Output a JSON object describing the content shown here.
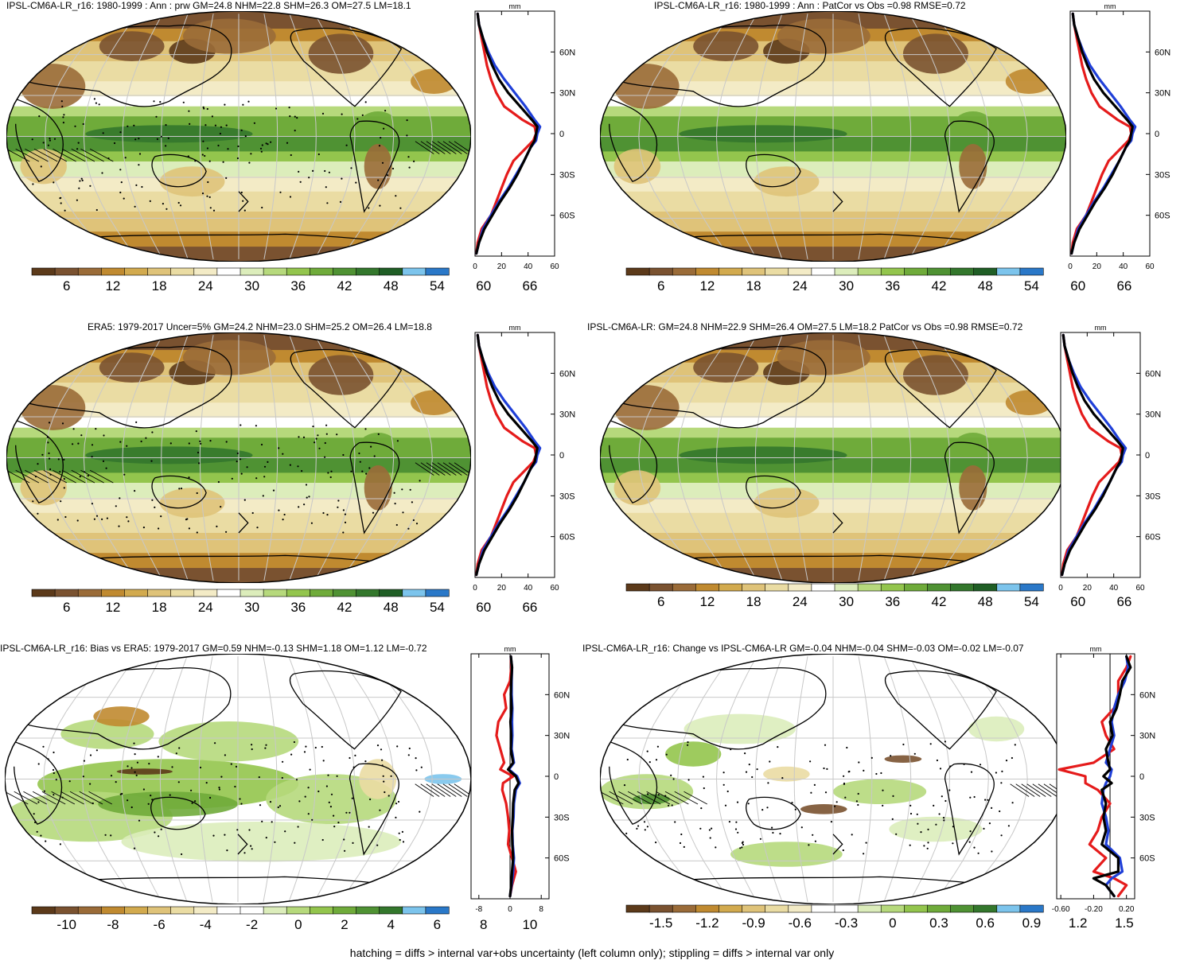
{
  "footnote": "hatching = diffs > internal var+obs uncertainty (left column only); stippling = diffs > internal var only",
  "palettes": {
    "brown_green": [
      "#5c3a1a",
      "#7a5230",
      "#9a6b38",
      "#c08a30",
      "#d2aa4e",
      "#dfc379",
      "#eadca3",
      "#f3ebc6",
      "#ffffff",
      "#dcedbb",
      "#b6d97c",
      "#93c54d",
      "#6fab3a",
      "#4f9233",
      "#33772c",
      "#1f5e25",
      "#7cc4ec",
      "#2a78c8"
    ],
    "bias": [
      "#5c3a1a",
      "#7a5230",
      "#9a6b38",
      "#c08a30",
      "#d2aa4e",
      "#dfc379",
      "#eadca3",
      "#f3ebc6",
      "#ffffff",
      "#ffffff",
      "#dcedbb",
      "#b6d97c",
      "#93c54d",
      "#6fab3a",
      "#4f9233",
      "#33772c",
      "#7cc4ec",
      "#2a78c8"
    ]
  },
  "line_colors": {
    "model": "#000000",
    "obs": "#1f3fd8",
    "other": "#e51b1b"
  },
  "panels": [
    {
      "id": "p1",
      "title": "IPSL-CM6A-LR_r16: 1980-1999 : Ann : prw GM=24.8 NHM=22.8 SHM=26.3 OM=27.5 LM=18.1",
      "map_style": "full",
      "colorbar": {
        "ticks": [
          "6",
          "12",
          "18",
          "24",
          "30",
          "36",
          "42",
          "48",
          "54",
          "60",
          "66"
        ],
        "palette": "brown_green"
      },
      "chart_data": {
        "type": "line",
        "title": "IPSL-CM6A-LR_r16: 1980-1999 : Ann : prw GM=24.8 NHM=22.8 SHM=26.3 OM=27.5 LM=18.1",
        "xlabel": "mm",
        "ylabel": "",
        "xlim": [
          0,
          60
        ],
        "ylim": [
          -90,
          90
        ],
        "x_ticks": [
          "0",
          "20",
          "40",
          "60"
        ],
        "y_ticks": [
          "60N",
          "30N",
          "0",
          "30S",
          "60S"
        ],
        "y": [
          -88,
          -80,
          -70,
          -60,
          -50,
          -40,
          -30,
          -20,
          -10,
          -5,
          0,
          5,
          10,
          20,
          30,
          40,
          50,
          60,
          70,
          80,
          88
        ],
        "series": [
          {
            "color": "#000000",
            "values": [
              1,
              3,
              7,
              13,
              19,
              26,
              32,
              37,
              42,
              45,
              46,
              47,
              43,
              34,
              25,
              18,
              13,
              9,
              6,
              3,
              2
            ]
          },
          {
            "color": "#1f3fd8",
            "values": [
              1,
              3,
              6,
              12,
              18,
              25,
              31,
              37,
              42,
              46,
              47,
              49,
              45,
              38,
              30,
              22,
              15,
              10,
              6,
              3,
              2
            ]
          },
          {
            "color": "#e51b1b",
            "values": [
              1,
              2,
              5,
              12,
              16,
              20,
              24,
              29,
              39,
              44,
              46,
              45,
              36,
              22,
              16,
              12,
              9,
              7,
              5,
              3,
              2
            ]
          }
        ]
      }
    },
    {
      "id": "p2",
      "title": "IPSL-CM6A-LR_r16: 1980-1999 : Ann : PatCor vs Obs =0.98 RMSE=0.72",
      "map_style": "full",
      "colorbar": {
        "ticks": [
          "6",
          "12",
          "18",
          "24",
          "30",
          "36",
          "42",
          "48",
          "54",
          "60",
          "66"
        ],
        "palette": "brown_green"
      },
      "chart_data": {
        "type": "line",
        "title": "IPSL-CM6A-LR_r16: 1980-1999 : Ann : PatCor vs Obs =0.98 RMSE=0.72",
        "xlabel": "mm",
        "ylabel": "",
        "xlim": [
          0,
          60
        ],
        "ylim": [
          -90,
          90
        ],
        "x_ticks": [
          "0",
          "20",
          "40",
          "60"
        ],
        "y_ticks": [
          "60N",
          "30N",
          "0",
          "30S",
          "60S"
        ],
        "y": [
          -88,
          -80,
          -70,
          -60,
          -50,
          -40,
          -30,
          -20,
          -10,
          -5,
          0,
          5,
          10,
          20,
          30,
          40,
          50,
          60,
          70,
          80,
          88
        ],
        "series": [
          {
            "color": "#000000",
            "values": [
              1,
              3,
              7,
              13,
              19,
              26,
              32,
              37,
              42,
              45,
              46,
              47,
              43,
              34,
              25,
              18,
              13,
              9,
              6,
              3,
              2
            ]
          },
          {
            "color": "#1f3fd8",
            "values": [
              1,
              3,
              6,
              12,
              18,
              25,
              31,
              37,
              42,
              46,
              47,
              49,
              45,
              38,
              30,
              22,
              15,
              10,
              6,
              3,
              2
            ]
          },
          {
            "color": "#e51b1b",
            "values": [
              1,
              2,
              5,
              12,
              16,
              20,
              24,
              29,
              39,
              44,
              46,
              45,
              36,
              22,
              16,
              12,
              9,
              7,
              5,
              3,
              2
            ]
          }
        ]
      }
    },
    {
      "id": "p3",
      "title": "ERA5: 1979-2017 Uncer=5% GM=24.2 NHM=23.0 SHM=25.2 OM=26.4 LM=18.8",
      "map_style": "full",
      "colorbar": {
        "ticks": [
          "6",
          "12",
          "18",
          "24",
          "30",
          "36",
          "42",
          "48",
          "54",
          "60",
          "66"
        ],
        "palette": "brown_green"
      },
      "chart_data": {
        "type": "line",
        "title": "ERA5: 1979-2017 Uncer=5% GM=24.2 NHM=23.0 SHM=25.2 OM=26.4 LM=18.8",
        "xlabel": "mm",
        "ylabel": "",
        "xlim": [
          0,
          60
        ],
        "ylim": [
          -90,
          90
        ],
        "x_ticks": [
          "0",
          "20",
          "40",
          "60"
        ],
        "y_ticks": [
          "60N",
          "30N",
          "0",
          "30S",
          "60S"
        ],
        "y": [
          -88,
          -80,
          -70,
          -60,
          -50,
          -40,
          -30,
          -20,
          -10,
          -5,
          0,
          5,
          10,
          20,
          30,
          40,
          50,
          60,
          70,
          80,
          88
        ],
        "series": [
          {
            "color": "#000000",
            "values": [
              1,
              3,
              7,
              13,
              19,
              26,
              32,
              37,
              42,
              45,
              46,
              47,
              43,
              34,
              25,
              18,
              13,
              9,
              6,
              3,
              2
            ]
          },
          {
            "color": "#1f3fd8",
            "values": [
              1,
              3,
              6,
              12,
              18,
              25,
              31,
              37,
              42,
              46,
              47,
              49,
              45,
              38,
              30,
              22,
              15,
              10,
              6,
              3,
              2
            ]
          },
          {
            "color": "#e51b1b",
            "values": [
              1,
              2,
              5,
              12,
              16,
              20,
              24,
              29,
              39,
              44,
              46,
              45,
              36,
              22,
              16,
              12,
              9,
              7,
              5,
              3,
              2
            ]
          }
        ]
      }
    },
    {
      "id": "p4",
      "title": "IPSL-CM6A-LR: GM=24.8 NHM=22.9 SHM=26.4 OM=27.5 LM=18.2 PatCor vs Obs =0.98 RMSE=0.72",
      "map_style": "full",
      "colorbar": {
        "ticks": [
          "6",
          "12",
          "18",
          "24",
          "30",
          "36",
          "42",
          "48",
          "54",
          "60",
          "66"
        ],
        "palette": "brown_green"
      },
      "chart_data": {
        "type": "line",
        "title": "IPSL-CM6A-LR: GM=24.8 NHM=22.9 SHM=26.4 OM=27.5 LM=18.2 PatCor vs Obs =0.98 RMSE=0.72",
        "xlabel": "mm",
        "ylabel": "",
        "xlim": [
          0,
          60
        ],
        "ylim": [
          -90,
          90
        ],
        "x_ticks": [
          "0",
          "20",
          "40",
          "60"
        ],
        "y_ticks": [
          "60N",
          "30N",
          "0",
          "30S",
          "60S"
        ],
        "y": [
          -88,
          -80,
          -70,
          -60,
          -50,
          -40,
          -30,
          -20,
          -10,
          -5,
          0,
          5,
          10,
          20,
          30,
          40,
          50,
          60,
          70,
          80,
          88
        ],
        "series": [
          {
            "color": "#000000",
            "values": [
              1,
              3,
              7,
              13,
              19,
              26,
              32,
              37,
              42,
              45,
              46,
              47,
              43,
              34,
              25,
              18,
              13,
              9,
              6,
              3,
              2
            ]
          },
          {
            "color": "#1f3fd8",
            "values": [
              1,
              3,
              6,
              12,
              18,
              25,
              31,
              37,
              42,
              46,
              47,
              49,
              45,
              38,
              30,
              22,
              15,
              10,
              6,
              3,
              2
            ]
          },
          {
            "color": "#e51b1b",
            "values": [
              1,
              2,
              5,
              12,
              16,
              20,
              24,
              29,
              39,
              44,
              46,
              45,
              36,
              22,
              16,
              12,
              9,
              7,
              5,
              3,
              2
            ]
          }
        ]
      }
    },
    {
      "id": "p5",
      "title": "IPSL-CM6A-LR_r16: Bias vs ERA5: 1979-2017 GM=0.59 NHM=-0.13 SHM=1.18 OM=1.12 LM=-0.72",
      "map_style": "bias",
      "colorbar": {
        "ticks": [
          "-10",
          "-8",
          "-6",
          "-4",
          "-2",
          "0",
          "2",
          "4",
          "6",
          "8",
          "10"
        ],
        "palette": "bias"
      },
      "chart_data": {
        "type": "line",
        "title": "IPSL-CM6A-LR_r16: Bias vs ERA5: 1979-2017 GM=0.59 NHM=-0.13 SHM=1.18 OM=1.12 LM=-0.72",
        "xlabel": "mm",
        "ylabel": "",
        "xlim": [
          -10,
          10
        ],
        "ylim": [
          -90,
          90
        ],
        "x_ticks": [
          "-8",
          "0",
          "8"
        ],
        "y_ticks": [
          "60N",
          "30N",
          "0",
          "30S",
          "60S"
        ],
        "y": [
          -88,
          -80,
          -70,
          -60,
          -50,
          -40,
          -30,
          -20,
          -10,
          -5,
          0,
          5,
          10,
          20,
          30,
          40,
          50,
          60,
          70,
          80,
          88
        ],
        "series": [
          {
            "color": "#000000",
            "values": [
              0,
              0.3,
              0.5,
              0.8,
              0.6,
              0.5,
              0.7,
              0.8,
              1.2,
              2.2,
              1.5,
              -0.5,
              0.8,
              0.2,
              0.3,
              0.1,
              0.4,
              0.2,
              0.3,
              0.5,
              0.2
            ]
          },
          {
            "color": "#1f3fd8",
            "values": [
              0,
              0.4,
              0.8,
              1.0,
              0.7,
              0.6,
              0.9,
              1.0,
              1.5,
              2.5,
              1.8,
              -0.3,
              1.0,
              0.4,
              0.6,
              0.5,
              0.6,
              0.4,
              0.4,
              0.5,
              0.2
            ]
          },
          {
            "color": "#e51b1b",
            "values": [
              0,
              0.5,
              1.5,
              0.5,
              -0.5,
              -0.2,
              -0.5,
              -1.0,
              -2.0,
              -1.8,
              0.8,
              -2.5,
              -1.5,
              -2.5,
              -3.5,
              -3.0,
              -1.0,
              -1.5,
              0.0,
              0.3,
              0.2
            ]
          }
        ]
      }
    },
    {
      "id": "p6",
      "title": "IPSL-CM6A-LR_r16: Change vs IPSL-CM6A-LR GM=-0.04 NHM=-0.04 SHM=-0.03 OM=-0.02 LM=-0.07",
      "map_style": "change",
      "colorbar": {
        "ticks": [
          "-1.5",
          "-1.2",
          "-0.9",
          "-0.6",
          "-0.3",
          "0",
          "0.3",
          "0.6",
          "0.9",
          "1.2",
          "1.5"
        ],
        "palette": "bias"
      },
      "chart_data": {
        "type": "line",
        "title": "IPSL-CM6A-LR_r16: Change vs IPSL-CM6A-LR GM=-0.04 NHM=-0.04 SHM=-0.03 OM=-0.02 LM=-0.07",
        "xlabel": "mm",
        "ylabel": "",
        "xlim": [
          -0.65,
          0.3
        ],
        "ylim": [
          -90,
          90
        ],
        "x_ticks": [
          "-0.60",
          "-0.20",
          "0.20"
        ],
        "y_ticks": [
          "60N",
          "30N",
          "0",
          "30S",
          "60S"
        ],
        "y": [
          -88,
          -80,
          -75,
          -70,
          -60,
          -50,
          -40,
          -30,
          -20,
          -10,
          -5,
          0,
          5,
          10,
          20,
          30,
          40,
          50,
          60,
          70,
          80,
          88
        ],
        "series": [
          {
            "color": "#000000",
            "values": [
              0.05,
              -0.05,
              -0.2,
              0.1,
              0.1,
              -0.1,
              -0.05,
              -0.08,
              -0.05,
              -0.1,
              0.02,
              -0.08,
              0.0,
              -0.02,
              -0.05,
              0.03,
              0.0,
              0.08,
              0.12,
              0.15,
              0.25,
              0.2
            ]
          },
          {
            "color": "#1f3fd8",
            "values": [
              0.05,
              -0.05,
              0.02,
              0.15,
              0.12,
              -0.05,
              -0.02,
              -0.05,
              -0.1,
              -0.08,
              -0.05,
              0.0,
              0.02,
              -0.05,
              0.0,
              0.05,
              0.02,
              0.05,
              0.1,
              0.18,
              0.22,
              0.2
            ]
          },
          {
            "color": "#e51b1b",
            "values": [
              0.1,
              0.2,
              0.05,
              -0.2,
              -0.05,
              -0.25,
              -0.15,
              -0.1,
              0.0,
              -0.15,
              -0.3,
              -0.3,
              -0.62,
              -0.2,
              0.05,
              -0.05,
              -0.1,
              0.05,
              0.1,
              0.1,
              0.2,
              0.25
            ]
          }
        ]
      }
    }
  ]
}
